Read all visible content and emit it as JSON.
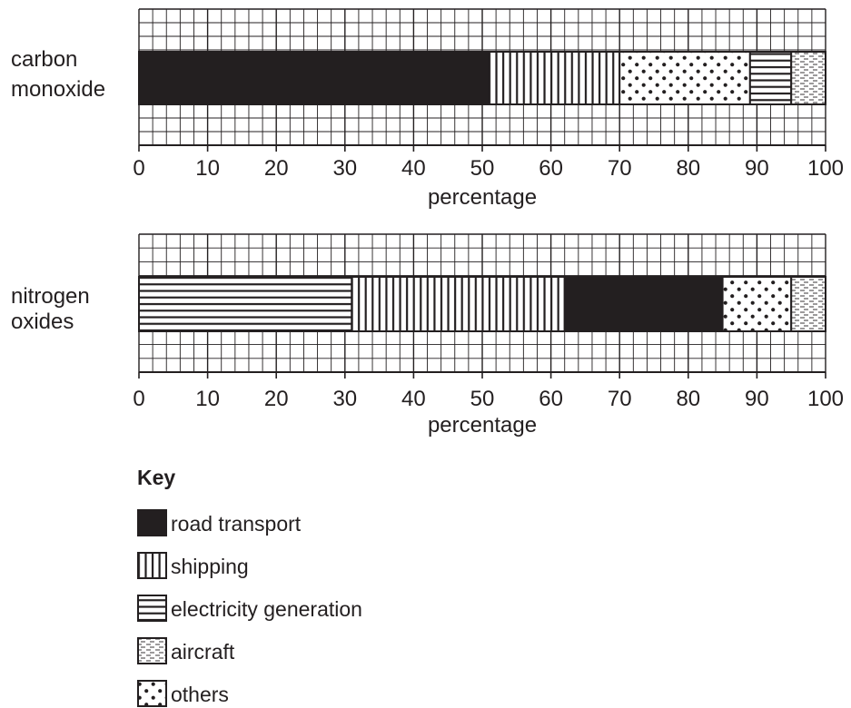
{
  "chart_data": [
    {
      "type": "bar",
      "subtype": "stacked-horizontal-100-percent",
      "category_label": [
        "carbon",
        "monoxide"
      ],
      "xlabel": "percentage",
      "xlim": [
        0,
        100
      ],
      "xticks": [
        0,
        10,
        20,
        30,
        40,
        50,
        60,
        70,
        80,
        90,
        100
      ],
      "grid": true,
      "segments": [
        {
          "series": "road transport",
          "value": 51
        },
        {
          "series": "shipping",
          "value": 19
        },
        {
          "series": "others",
          "value": 19
        },
        {
          "series": "electricity generation",
          "value": 6
        },
        {
          "series": "aircraft",
          "value": 5
        }
      ]
    },
    {
      "type": "bar",
      "subtype": "stacked-horizontal-100-percent",
      "category_label": [
        "nitrogen",
        "oxides"
      ],
      "xlabel": "percentage",
      "xlim": [
        0,
        100
      ],
      "xticks": [
        0,
        10,
        20,
        30,
        40,
        50,
        60,
        70,
        80,
        90,
        100
      ],
      "grid": true,
      "segments": [
        {
          "series": "electricity generation",
          "value": 31
        },
        {
          "series": "shipping",
          "value": 31
        },
        {
          "series": "road transport",
          "value": 23
        },
        {
          "series": "others",
          "value": 10
        },
        {
          "series": "aircraft",
          "value": 5
        }
      ]
    }
  ],
  "key": {
    "title": "Key",
    "items": [
      {
        "label": "road transport",
        "pattern": "solid"
      },
      {
        "label": "shipping",
        "pattern": "vertical-lines"
      },
      {
        "label": "electricity generation",
        "pattern": "horizontal-lines"
      },
      {
        "label": "aircraft",
        "pattern": "dashes"
      },
      {
        "label": "others",
        "pattern": "dots"
      }
    ]
  },
  "colors": {
    "ink": "#231f20",
    "background": "#ffffff"
  }
}
